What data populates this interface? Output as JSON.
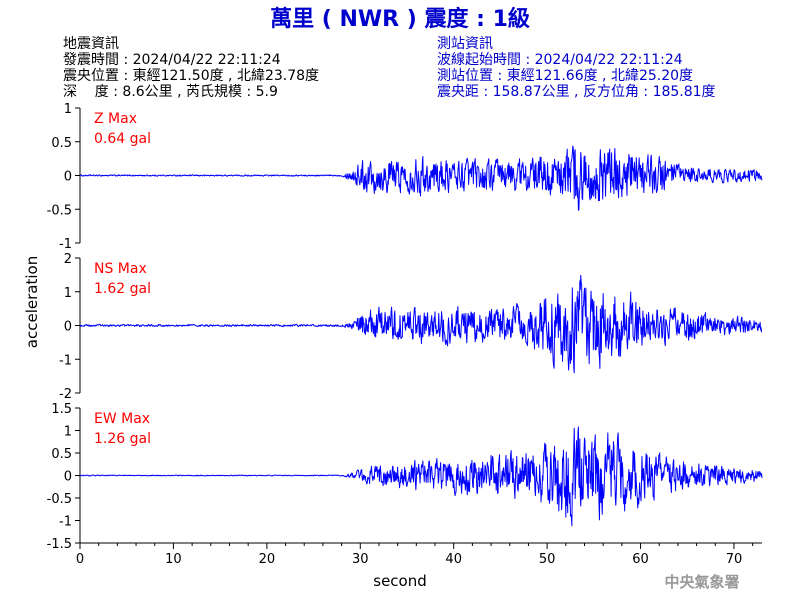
{
  "page_title": "萬里 ( NWR ) 震度 : 1級",
  "event_info": {
    "heading": "地震資訊",
    "time": "發震時間 : 2024/04/22 22:11:24",
    "epicenter": "震央位置 : 東經121.50度 , 北緯23.78度",
    "depth_magnitude": "深    度 : 8.6公里 , 芮氏規模 : 5.9"
  },
  "station_info": {
    "heading": "測站資訊",
    "onset": "波線起始時間 : 2024/04/22 22:11:24",
    "location": "測站位置 : 東經121.66度 , 北緯25.20度",
    "distance": "震央距 : 158.87公里 , 反方位角 : 185.81度"
  },
  "footer": {
    "agency": "中央氣象署"
  },
  "colors": {
    "title": "#0000cc",
    "event_info": "#000000",
    "station_info": "#0000cc",
    "max_label": "#ff0000",
    "trace": "#0000ff",
    "axes": "#000000"
  },
  "chart_data": {
    "type": "line",
    "xlabel": "second",
    "ylabel": "acceleration",
    "xlim": [
      0,
      73
    ],
    "x_ticks": [
      0,
      10,
      20,
      30,
      40,
      50,
      60,
      70
    ],
    "grid": false,
    "panels": [
      {
        "name": "Z",
        "max_label": "Z Max",
        "max_value": "0.64 gal",
        "ylim": [
          -1,
          1
        ],
        "y_ticks": [
          1,
          0.5,
          0,
          -0.5,
          -1
        ],
        "x": [
          0,
          28,
          29,
          30,
          31,
          32,
          33,
          34,
          35,
          36,
          37,
          38,
          39,
          40,
          41,
          42,
          43,
          44,
          45,
          46,
          47,
          48,
          49,
          50,
          51,
          52,
          53,
          54,
          55,
          56,
          57,
          58,
          59,
          60,
          61,
          62,
          63,
          64,
          65,
          66,
          67,
          68,
          69,
          70,
          71,
          72,
          73
        ],
        "envelope": [
          0.01,
          0.01,
          0.08,
          0.22,
          0.25,
          0.24,
          0.26,
          0.22,
          0.24,
          0.27,
          0.25,
          0.26,
          0.24,
          0.22,
          0.24,
          0.23,
          0.22,
          0.24,
          0.23,
          0.25,
          0.26,
          0.22,
          0.28,
          0.3,
          0.26,
          0.38,
          0.6,
          0.42,
          0.35,
          0.48,
          0.42,
          0.34,
          0.38,
          0.28,
          0.32,
          0.3,
          0.2,
          0.16,
          0.13,
          0.12,
          0.1,
          0.11,
          0.1,
          0.1,
          0.09,
          0.09,
          0.08
        ]
      },
      {
        "name": "NS",
        "max_label": "NS Max",
        "max_value": "1.62 gal",
        "ylim": [
          -2,
          2
        ],
        "y_ticks": [
          2,
          1,
          0,
          -1,
          -2
        ],
        "x": [
          0,
          28,
          29,
          30,
          31,
          32,
          33,
          34,
          35,
          36,
          37,
          38,
          39,
          40,
          41,
          42,
          43,
          44,
          45,
          46,
          47,
          48,
          49,
          50,
          51,
          52,
          53,
          54,
          55,
          56,
          57,
          58,
          59,
          60,
          61,
          62,
          63,
          64,
          65,
          66,
          67,
          68,
          69,
          70,
          71,
          72,
          73
        ],
        "envelope": [
          0.03,
          0.03,
          0.1,
          0.35,
          0.45,
          0.5,
          0.55,
          0.5,
          0.45,
          0.5,
          0.55,
          0.5,
          0.55,
          0.5,
          0.55,
          0.5,
          0.45,
          0.5,
          0.55,
          0.6,
          0.55,
          0.5,
          0.8,
          1.0,
          1.1,
          1.2,
          1.5,
          1.3,
          1.2,
          1.1,
          1.0,
          1.0,
          0.9,
          0.7,
          0.6,
          0.55,
          0.55,
          0.5,
          0.45,
          0.4,
          0.35,
          0.3,
          0.3,
          0.25,
          0.25,
          0.2,
          0.2
        ]
      },
      {
        "name": "EW",
        "max_label": "EW Max",
        "max_value": "1.26 gal",
        "ylim": [
          -1.5,
          1.5
        ],
        "y_ticks": [
          1.5,
          1,
          0.5,
          0,
          -0.5,
          -1,
          -1.5
        ],
        "x": [
          0,
          28,
          29,
          30,
          31,
          32,
          33,
          34,
          35,
          36,
          37,
          38,
          39,
          40,
          41,
          42,
          43,
          44,
          45,
          46,
          47,
          48,
          49,
          50,
          51,
          52,
          53,
          54,
          55,
          56,
          57,
          58,
          59,
          60,
          61,
          62,
          63,
          64,
          65,
          66,
          67,
          68,
          69,
          70,
          71,
          72,
          73
        ],
        "envelope": [
          0.01,
          0.01,
          0.05,
          0.15,
          0.2,
          0.22,
          0.25,
          0.28,
          0.3,
          0.32,
          0.3,
          0.33,
          0.35,
          0.38,
          0.4,
          0.45,
          0.42,
          0.48,
          0.5,
          0.52,
          0.55,
          0.5,
          0.6,
          0.75,
          0.95,
          1.0,
          1.1,
          1.05,
          0.95,
          0.9,
          0.85,
          0.8,
          0.7,
          0.65,
          0.55,
          0.45,
          0.4,
          0.35,
          0.3,
          0.28,
          0.25,
          0.22,
          0.2,
          0.18,
          0.16,
          0.15,
          0.14
        ]
      }
    ]
  }
}
